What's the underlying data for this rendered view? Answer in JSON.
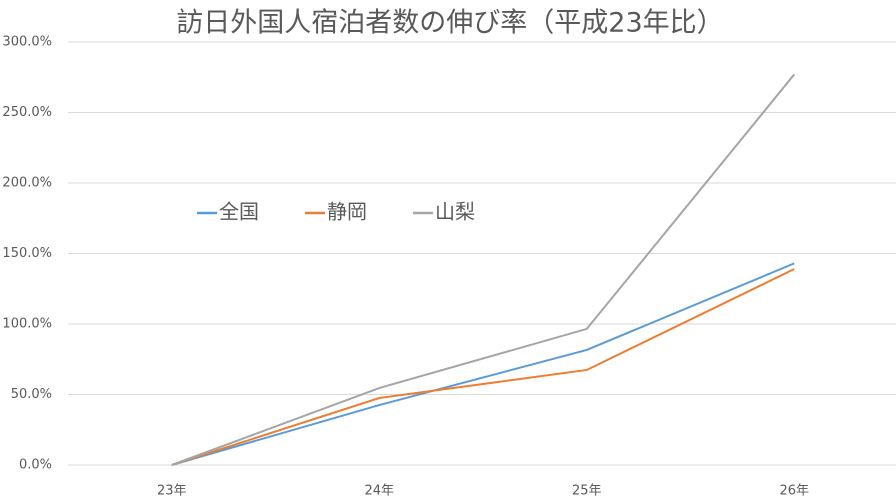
{
  "chart_data": {
    "type": "line",
    "title": "訪日外国人宿泊者数の伸び率（平成23年比）",
    "categories": [
      "23年",
      "24年",
      "25年",
      "26年"
    ],
    "series": [
      {
        "name": "全国",
        "color": "#5b9bd5",
        "values": [
          0,
          42.5,
          81.6,
          143
        ]
      },
      {
        "name": "静岡",
        "color": "#ed7d31",
        "values": [
          0,
          47.5,
          67.4,
          139
        ]
      },
      {
        "name": "山梨",
        "color": "#a5a5a5",
        "values": [
          0,
          54.6,
          96.5,
          277
        ]
      }
    ],
    "ylim": [
      0,
      300
    ],
    "yticks": [
      {
        "value": 0,
        "label": "0.0%"
      },
      {
        "value": 50,
        "label": "50.0%"
      },
      {
        "value": 100,
        "label": "100.0%"
      },
      {
        "value": 150,
        "label": "150.0%"
      },
      {
        "value": 200,
        "label": "200.0%"
      },
      {
        "value": 250,
        "label": "250.0%"
      },
      {
        "value": 300,
        "label": "300.0%"
      }
    ],
    "grid": true
  }
}
